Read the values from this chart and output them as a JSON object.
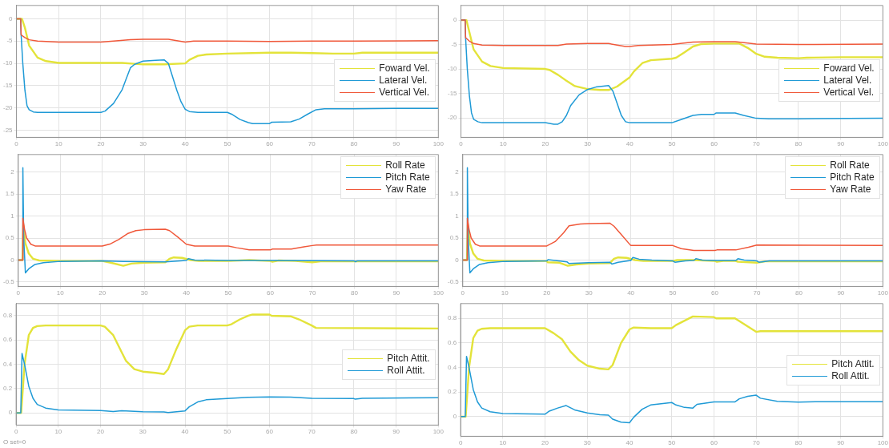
{
  "chart_data": [
    {
      "type": "line",
      "xlim": [
        0,
        100
      ],
      "xticks": [
        0,
        10,
        20,
        30,
        40,
        50,
        60,
        70,
        80,
        90,
        100
      ],
      "ylim": [
        -26.6,
        3
      ],
      "yticks": [
        -25,
        -20,
        -15,
        -10,
        -5,
        0
      ],
      "grid": true,
      "legend": "bottom right",
      "marker": "none",
      "line_style": "solid",
      "series": [
        {
          "name": "Foward Vel.",
          "color": "#e3e33a",
          "x": [
            0,
            1.3,
            2,
            3,
            5,
            7,
            10,
            20,
            25,
            28,
            30,
            35,
            40,
            41,
            43,
            45,
            50,
            60,
            65,
            70,
            75,
            80,
            82,
            90,
            100
          ],
          "values": [
            0,
            0,
            -2,
            -6,
            -8.7,
            -9.5,
            -9.9,
            -9.9,
            -9.9,
            -10.1,
            -10.2,
            -10.2,
            -10,
            -9.2,
            -8.3,
            -8,
            -7.8,
            -7.6,
            -7.6,
            -7.7,
            -7.8,
            -7.8,
            -7.6,
            -7.6,
            -7.6
          ]
        },
        {
          "name": "Lateral Vel.",
          "color": "#1f9ad6",
          "x": [
            0,
            1,
            1.1,
            1.5,
            2,
            2.5,
            3,
            4,
            5,
            20,
            21,
            23,
            25,
            26,
            27,
            28,
            30,
            33,
            35,
            36,
            37,
            38,
            39,
            40,
            41,
            43,
            50,
            51,
            53,
            55,
            56,
            60,
            60.5,
            65,
            67,
            69,
            71,
            73,
            80,
            90,
            100
          ],
          "values": [
            0,
            0,
            -3.5,
            -10,
            -16,
            -19.5,
            -20.4,
            -20.9,
            -21,
            -21,
            -20.7,
            -19,
            -16,
            -13.5,
            -11,
            -10.2,
            -9.5,
            -9.3,
            -9.2,
            -10,
            -13,
            -16,
            -18.6,
            -20.3,
            -20.8,
            -21,
            -21,
            -21.4,
            -22.6,
            -23.3,
            -23.5,
            -23.5,
            -23.2,
            -23.1,
            -22.5,
            -21.4,
            -20.4,
            -20.2,
            -20.2,
            -20.1,
            -20.1
          ]
        },
        {
          "name": "Vertical Vel.",
          "color": "#f0583a",
          "x": [
            0,
            1,
            1.1,
            2,
            3,
            5,
            10,
            20,
            23,
            27,
            30,
            36,
            38,
            40,
            42,
            50,
            60,
            70,
            80,
            100
          ],
          "values": [
            0,
            0,
            -3.6,
            -4.2,
            -4.7,
            -5,
            -5.2,
            -5.2,
            -5,
            -4.7,
            -4.6,
            -4.6,
            -4.9,
            -5.2,
            -5,
            -5,
            -5.1,
            -5,
            -5,
            -4.9
          ]
        }
      ]
    },
    {
      "type": "line",
      "xlim": [
        0,
        100
      ],
      "xticks": [
        0,
        10,
        20,
        30,
        40,
        50,
        60,
        70,
        80,
        90,
        100
      ],
      "ylim": [
        -24,
        3
      ],
      "yticks": [
        -20,
        -15,
        -10,
        -5,
        0
      ],
      "grid": true,
      "legend": "bottom right",
      "marker": "none",
      "line_style": "solid",
      "series": [
        {
          "name": "Foward Vel.",
          "color": "#e3e33a",
          "x": [
            0,
            1.3,
            2,
            3,
            5,
            7,
            10,
            20,
            21,
            23,
            25,
            27,
            30,
            33,
            35,
            37,
            40,
            41,
            43,
            45,
            50,
            51,
            53,
            55,
            57,
            60,
            66,
            68,
            70,
            72,
            75,
            80,
            82,
            90,
            100
          ],
          "values": [
            0,
            0,
            -2.5,
            -6,
            -8.5,
            -9.4,
            -9.8,
            -10,
            -10.2,
            -11.2,
            -12.4,
            -13.5,
            -14.1,
            -14.3,
            -14.3,
            -13.6,
            -11.7,
            -10.5,
            -8.8,
            -8.2,
            -7.9,
            -7.7,
            -6.6,
            -5.4,
            -4.9,
            -4.8,
            -4.8,
            -5.7,
            -6.9,
            -7.5,
            -7.7,
            -7.8,
            -7.7,
            -7.6,
            -7.6
          ]
        },
        {
          "name": "Lateral Vel.",
          "color": "#1f9ad6",
          "x": [
            0,
            1,
            1.1,
            1.5,
            2,
            2.5,
            3,
            4,
            5,
            20,
            22,
            23,
            24,
            25,
            26,
            28,
            30,
            32,
            35,
            36,
            37,
            38,
            39,
            40,
            50,
            52,
            55,
            57,
            60,
            60.5,
            65,
            67,
            70,
            73,
            80,
            100
          ],
          "values": [
            0,
            0,
            -3.7,
            -10,
            -15.5,
            -19,
            -20.3,
            -20.8,
            -21,
            -21,
            -21.3,
            -21.3,
            -20.8,
            -19.5,
            -17.5,
            -15.3,
            -14.2,
            -13.7,
            -13.4,
            -14.5,
            -17,
            -19.5,
            -20.8,
            -21,
            -21,
            -20.4,
            -19.5,
            -19.3,
            -19.3,
            -19,
            -19,
            -19.5,
            -20.1,
            -20.2,
            -20.2,
            -20.1
          ]
        },
        {
          "name": "Vertical Vel.",
          "color": "#f0583a",
          "x": [
            0,
            1,
            1.1,
            2,
            3,
            5,
            10,
            23,
            25,
            30,
            35,
            37,
            39,
            40,
            42,
            50,
            52,
            55,
            60,
            65,
            68,
            70,
            80,
            100
          ],
          "values": [
            0,
            0,
            -3.6,
            -4.3,
            -4.8,
            -5.1,
            -5.2,
            -5.2,
            -4.9,
            -4.8,
            -4.8,
            -5.1,
            -5.4,
            -5.4,
            -5.2,
            -5,
            -4.8,
            -4.5,
            -4.4,
            -4.4,
            -4.7,
            -4.9,
            -5,
            -4.9
          ]
        }
      ]
    },
    {
      "type": "line",
      "xlim": [
        0,
        100
      ],
      "xticks": [
        0,
        10,
        20,
        30,
        40,
        50,
        60,
        70,
        80,
        90,
        100
      ],
      "ylim": [
        -0.6,
        2.4
      ],
      "yticks": [
        -0.5,
        0,
        0.5,
        1,
        1.5,
        2
      ],
      "grid": true,
      "legend": "top right",
      "marker": "none",
      "line_style": "solid",
      "series": [
        {
          "name": "Roll Rate",
          "color": "#e3e33a",
          "x": [
            0,
            1,
            1.2,
            1.7,
            2.5,
            3.5,
            5,
            10,
            20,
            22,
            25,
            27,
            30,
            35,
            36,
            37,
            39,
            41,
            43,
            50,
            55,
            60,
            60.5,
            62,
            66,
            70,
            72,
            80,
            100
          ],
          "values": [
            0,
            0,
            0.8,
            0.38,
            0.15,
            0.03,
            -0.01,
            -0.02,
            -0.02,
            -0.06,
            -0.13,
            -0.08,
            -0.06,
            -0.05,
            0.03,
            0.06,
            0.05,
            0,
            -0.02,
            -0.02,
            0,
            -0.02,
            -0.04,
            -0.01,
            -0.02,
            -0.05,
            -0.03,
            -0.03,
            -0.03
          ]
        },
        {
          "name": "Pitch Rate",
          "color": "#1f9ad6",
          "x": [
            0,
            1,
            1.1,
            1.3,
            1.7,
            2.5,
            4,
            6,
            10,
            20,
            25,
            35,
            40,
            40.5,
            42,
            50,
            60,
            80,
            80.3,
            80.6,
            100
          ],
          "values": [
            0,
            0,
            2.1,
            0.5,
            -0.29,
            -0.2,
            -0.1,
            -0.06,
            -0.03,
            -0.02,
            -0.03,
            -0.04,
            -0.01,
            0.03,
            0,
            -0.01,
            -0.01,
            -0.02,
            -0.04,
            -0.02,
            -0.02
          ]
        },
        {
          "name": "Yaw Rate",
          "color": "#f0583a",
          "x": [
            0,
            1,
            1.1,
            1.5,
            2,
            3,
            4,
            20,
            22,
            24,
            26,
            28,
            30,
            35,
            36,
            38,
            40,
            42,
            50,
            52,
            55,
            60,
            60.5,
            65,
            68,
            70,
            71,
            100
          ],
          "values": [
            0,
            0,
            0.95,
            0.7,
            0.5,
            0.36,
            0.32,
            0.32,
            0.37,
            0.47,
            0.6,
            0.67,
            0.69,
            0.7,
            0.67,
            0.52,
            0.36,
            0.32,
            0.32,
            0.28,
            0.23,
            0.23,
            0.25,
            0.25,
            0.3,
            0.33,
            0.34,
            0.34
          ]
        }
      ]
    },
    {
      "type": "line",
      "xlim": [
        0,
        100
      ],
      "xticks": [
        0,
        10,
        20,
        30,
        40,
        50,
        60,
        70,
        80,
        90,
        100
      ],
      "ylim": [
        -0.6,
        2.4
      ],
      "yticks": [
        -0.5,
        0,
        0.5,
        1,
        1.5,
        2
      ],
      "grid": true,
      "legend": "top right",
      "marker": "none",
      "line_style": "solid",
      "series": [
        {
          "name": "Roll Rate",
          "color": "#e3e33a",
          "x": [
            0,
            1,
            1.2,
            1.7,
            2.5,
            3.5,
            5,
            10,
            20,
            20.2,
            23,
            25,
            27,
            30,
            35,
            36,
            37,
            39,
            41,
            43,
            50,
            51,
            55,
            60,
            60.5,
            62,
            65,
            65.5,
            70,
            72,
            100
          ],
          "values": [
            0,
            0,
            0.8,
            0.38,
            0.15,
            0.03,
            -0.01,
            -0.02,
            -0.02,
            -0.05,
            -0.06,
            -0.13,
            -0.1,
            -0.08,
            -0.07,
            0.03,
            0.06,
            0.05,
            0,
            -0.02,
            -0.02,
            0,
            0,
            -0.02,
            -0.04,
            -0.02,
            -0.02,
            -0.04,
            -0.06,
            -0.03,
            -0.03
          ]
        },
        {
          "name": "Pitch Rate",
          "color": "#1f9ad6",
          "x": [
            0,
            1,
            1.1,
            1.3,
            1.7,
            2.5,
            4,
            6,
            10,
            20,
            20.3,
            22,
            24.8,
            25.3,
            30,
            35,
            35.5,
            37,
            40,
            40.5,
            42,
            45,
            50,
            50.5,
            53,
            55,
            55.5,
            57,
            60,
            65,
            65.5,
            67,
            70,
            70.5,
            73,
            80,
            100
          ],
          "values": [
            0,
            0,
            2.1,
            0.5,
            -0.29,
            -0.2,
            -0.1,
            -0.06,
            -0.03,
            -0.02,
            0.01,
            -0.01,
            -0.04,
            -0.08,
            -0.06,
            -0.05,
            -0.09,
            -0.05,
            -0.01,
            0.06,
            0.02,
            0,
            -0.02,
            -0.05,
            -0.02,
            -0.01,
            0.03,
            0,
            -0.01,
            -0.01,
            0.03,
            0,
            -0.02,
            -0.05,
            -0.02,
            -0.02,
            -0.02
          ]
        },
        {
          "name": "Yaw Rate",
          "color": "#f0583a",
          "x": [
            0,
            1,
            1.1,
            1.5,
            2,
            3,
            4,
            20,
            22,
            24,
            25.3,
            28,
            30,
            35,
            36,
            38,
            40,
            50,
            52,
            55,
            60,
            60.5,
            65,
            68,
            70,
            100
          ],
          "values": [
            0,
            0,
            0.95,
            0.7,
            0.5,
            0.36,
            0.32,
            0.32,
            0.42,
            0.62,
            0.78,
            0.82,
            0.83,
            0.84,
            0.77,
            0.55,
            0.33,
            0.33,
            0.26,
            0.22,
            0.22,
            0.23,
            0.23,
            0.29,
            0.34,
            0.33
          ]
        }
      ]
    },
    {
      "type": "line",
      "xlim": [
        0,
        100
      ],
      "xticks": [
        0,
        10,
        20,
        30,
        40,
        50,
        60,
        70,
        80,
        90,
        100
      ],
      "ylim": [
        -0.1,
        0.9
      ],
      "yticks": [
        0,
        0.2,
        0.4,
        0.6,
        0.8
      ],
      "grid": true,
      "legend": "right",
      "marker": "none",
      "line_style": "solid",
      "annotations": [
        "O set=0"
      ],
      "series": [
        {
          "name": "Pitch Attit.",
          "color": "#e3e33a",
          "x": [
            0,
            1.2,
            2,
            3,
            4,
            5,
            7,
            20,
            21,
            23,
            25,
            26,
            28,
            30,
            33,
            35,
            36,
            38,
            40,
            41,
            43,
            50,
            51,
            53,
            55,
            56,
            60,
            60.5,
            65,
            67,
            70,
            71,
            100
          ],
          "values": [
            0,
            0,
            0.4,
            0.64,
            0.7,
            0.715,
            0.72,
            0.72,
            0.71,
            0.64,
            0.5,
            0.43,
            0.36,
            0.34,
            0.33,
            0.32,
            0.36,
            0.53,
            0.68,
            0.71,
            0.72,
            0.72,
            0.73,
            0.77,
            0.8,
            0.81,
            0.81,
            0.8,
            0.795,
            0.77,
            0.72,
            0.7,
            0.695
          ]
        },
        {
          "name": "Roll Attit.",
          "color": "#1f9ad6",
          "x": [
            0,
            1.1,
            1.4,
            2,
            3,
            4,
            5,
            7,
            10,
            20,
            23,
            25,
            30,
            35,
            36,
            40,
            41,
            43,
            45,
            50,
            55,
            60,
            65,
            70,
            80,
            80.3,
            82,
            100
          ],
          "values": [
            0,
            0,
            0.49,
            0.4,
            0.22,
            0.12,
            0.07,
            0.04,
            0.025,
            0.02,
            0.012,
            0.018,
            0.01,
            0.008,
            0.004,
            0.017,
            0.05,
            0.09,
            0.108,
            0.118,
            0.128,
            0.132,
            0.13,
            0.12,
            0.118,
            0.113,
            0.12,
            0.125
          ]
        }
      ]
    },
    {
      "type": "line",
      "xlim": [
        0,
        100
      ],
      "xticks": [
        0,
        10,
        20,
        30,
        40,
        50,
        60,
        70,
        80,
        90,
        100
      ],
      "ylim": [
        -0.16,
        0.92
      ],
      "yticks": [
        0,
        0.2,
        0.4,
        0.6,
        0.8
      ],
      "grid": true,
      "legend": "right",
      "marker": "none",
      "line_style": "solid",
      "series": [
        {
          "name": "Pitch Attit.",
          "color": "#e3e33a",
          "x": [
            0,
            1.2,
            2,
            3,
            4,
            5,
            7,
            20,
            22,
            24,
            26,
            28,
            30,
            33,
            35,
            36,
            38,
            40,
            41,
            45,
            50,
            51,
            55,
            60,
            60.5,
            65,
            70,
            71,
            100
          ],
          "values": [
            0,
            0,
            0.4,
            0.64,
            0.7,
            0.715,
            0.72,
            0.72,
            0.68,
            0.63,
            0.53,
            0.46,
            0.415,
            0.39,
            0.385,
            0.42,
            0.6,
            0.71,
            0.725,
            0.72,
            0.72,
            0.745,
            0.815,
            0.81,
            0.8,
            0.8,
            0.69,
            0.695,
            0.695
          ]
        },
        {
          "name": "Roll Attit.",
          "color": "#1f9ad6",
          "x": [
            0,
            1.1,
            1.4,
            2,
            3,
            4,
            5,
            7,
            10,
            20,
            21,
            23,
            25,
            27,
            30,
            33,
            35,
            36,
            38,
            40,
            41,
            43,
            45,
            50,
            51,
            53,
            55,
            56,
            60,
            65,
            66,
            68,
            70,
            71,
            75,
            80,
            85,
            100
          ],
          "values": [
            0,
            0,
            0.49,
            0.4,
            0.22,
            0.12,
            0.07,
            0.04,
            0.025,
            0.02,
            0.045,
            0.07,
            0.09,
            0.055,
            0.03,
            0.015,
            0.012,
            -0.02,
            -0.045,
            -0.05,
            -0.005,
            0.06,
            0.095,
            0.115,
            0.095,
            0.075,
            0.07,
            0.1,
            0.12,
            0.12,
            0.145,
            0.165,
            0.175,
            0.15,
            0.125,
            0.118,
            0.122,
            0.122
          ]
        }
      ]
    }
  ]
}
